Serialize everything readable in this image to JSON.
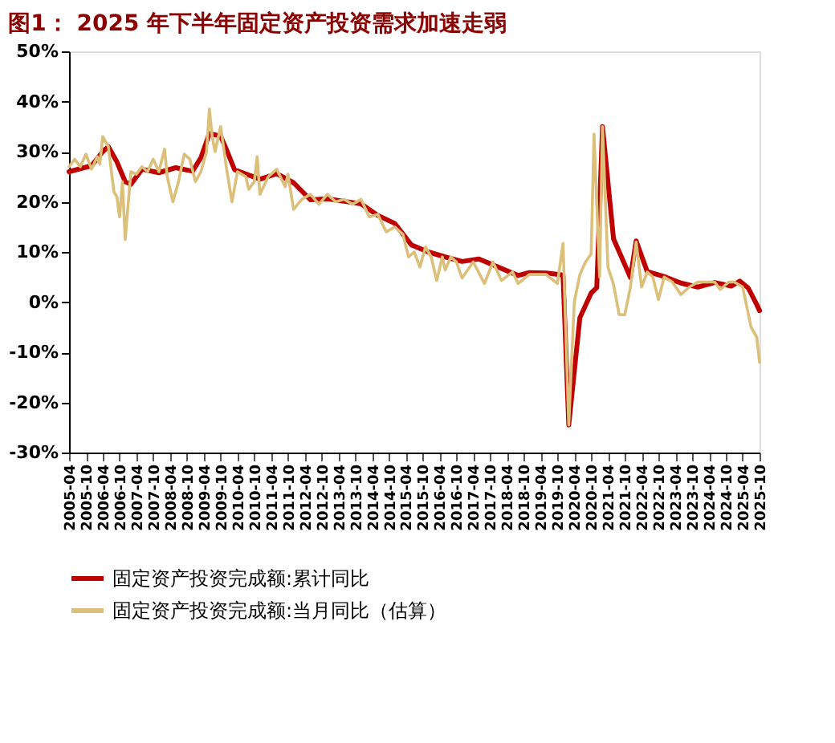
{
  "chart_data": {
    "type": "line",
    "title": "图1：  2025 年下半年固定资产投资需求加速走弱",
    "legend": "bottom",
    "grid": false,
    "xlim": [
      "2005-04",
      "2025-10"
    ],
    "xticks": [
      "2005-04",
      "2005-10",
      "2006-04",
      "2006-10",
      "2007-04",
      "2007-10",
      "2008-04",
      "2008-10",
      "2009-04",
      "2009-10",
      "2010-04",
      "2010-10",
      "2011-04",
      "2011-10",
      "2012-04",
      "2012-10",
      "2013-04",
      "2013-10",
      "2014-04",
      "2014-10",
      "2015-04",
      "2015-10",
      "2016-04",
      "2016-10",
      "2017-04",
      "2017-10",
      "2018-04",
      "2018-10",
      "2019-04",
      "2019-10",
      "2020-04",
      "2020-10",
      "2021-04",
      "2021-10",
      "2022-04",
      "2022-10",
      "2023-04",
      "2023-10",
      "2024-04",
      "2024-10",
      "2025-04",
      "2025-10"
    ],
    "ylim": [
      -30,
      50
    ],
    "yticks": [
      {
        "value": -30,
        "label": "-30%"
      },
      {
        "value": -20,
        "label": "-20%"
      },
      {
        "value": -10,
        "label": "-10%"
      },
      {
        "value": 0,
        "label": "0%"
      },
      {
        "value": 10,
        "label": "10%"
      },
      {
        "value": 20,
        "label": "20%"
      },
      {
        "value": 30,
        "label": "30%"
      },
      {
        "value": 40,
        "label": "40%"
      },
      {
        "value": 50,
        "label": "50%"
      }
    ],
    "series": [
      {
        "name": "固定资产投资完成额:累计同比",
        "color": "#c00000",
        "x": [
          "2005-04",
          "2005-12",
          "2006-04",
          "2006-06",
          "2006-09",
          "2006-12",
          "2007-02",
          "2007-06",
          "2007-12",
          "2008-06",
          "2008-12",
          "2009-03",
          "2009-06",
          "2009-10",
          "2009-12",
          "2010-03",
          "2010-12",
          "2011-06",
          "2011-12",
          "2012-06",
          "2012-12",
          "2013-06",
          "2013-12",
          "2014-06",
          "2014-12",
          "2015-06",
          "2015-12",
          "2016-06",
          "2016-12",
          "2017-06",
          "2017-12",
          "2018-08",
          "2018-12",
          "2019-06",
          "2019-12",
          "2020-02",
          "2020-06",
          "2020-10",
          "2020-12",
          "2021-02",
          "2021-06",
          "2021-12",
          "2022-02",
          "2022-06",
          "2022-12",
          "2023-06",
          "2023-12",
          "2024-06",
          "2024-12",
          "2025-03",
          "2025-06",
          "2025-09",
          "2025-10"
        ],
        "values": [
          26,
          27.2,
          30,
          31,
          28,
          24,
          23.5,
          26.5,
          25.8,
          26.8,
          26.1,
          28.8,
          33.6,
          33.1,
          30.5,
          26.4,
          24.5,
          25.6,
          23.8,
          20.4,
          20.6,
          20.1,
          19.6,
          17.3,
          15.7,
          11.4,
          10,
          9,
          8.1,
          8.6,
          7.2,
          5.3,
          5.9,
          5.8,
          5.4,
          -24.5,
          -3.1,
          1.8,
          2.9,
          35,
          12.6,
          4.9,
          12.2,
          6.1,
          5.1,
          3.8,
          3,
          3.9,
          3.2,
          4.2,
          2.8,
          -0.5,
          -1.7
        ]
      },
      {
        "name": "固定资产投资完成额:当月同比（估算）",
        "color": "#dcc07a",
        "x": [
          "2005-04",
          "2005-06",
          "2005-08",
          "2005-10",
          "2005-12",
          "2006-02",
          "2006-03",
          "2006-04",
          "2006-06",
          "2006-08",
          "2006-09",
          "2006-10",
          "2006-11",
          "2006-12",
          "2007-02",
          "2007-04",
          "2007-06",
          "2007-08",
          "2007-10",
          "2007-12",
          "2008-02",
          "2008-03",
          "2008-05",
          "2008-07",
          "2008-09",
          "2008-11",
          "2009-01",
          "2009-03",
          "2009-05",
          "2009-06",
          "2009-07",
          "2009-08",
          "2009-10",
          "2009-12",
          "2010-02",
          "2010-04",
          "2010-07",
          "2010-08",
          "2010-10",
          "2010-11",
          "2010-12",
          "2011-03",
          "2011-06",
          "2011-09",
          "2011-10",
          "2011-12",
          "2012-03",
          "2012-06",
          "2012-09",
          "2012-12",
          "2013-03",
          "2013-06",
          "2013-09",
          "2013-12",
          "2014-03",
          "2014-06",
          "2014-09",
          "2014-12",
          "2015-03",
          "2015-05",
          "2015-07",
          "2015-09",
          "2015-11",
          "2016-01",
          "2016-03",
          "2016-05",
          "2016-06",
          "2016-08",
          "2016-10",
          "2016-12",
          "2017-04",
          "2017-08",
          "2017-11",
          "2018-02",
          "2018-06",
          "2018-08",
          "2018-12",
          "2019-06",
          "2019-10",
          "2019-12",
          "2020-02",
          "2020-04",
          "2020-06",
          "2020-08",
          "2020-10",
          "2020-11",
          "2021-01",
          "2021-02",
          "2021-04",
          "2021-06",
          "2021-08",
          "2021-10",
          "2021-12",
          "2022-02",
          "2022-04",
          "2022-06",
          "2022-08",
          "2022-10",
          "2022-12",
          "2023-03",
          "2023-06",
          "2023-09",
          "2023-12",
          "2024-03",
          "2024-06",
          "2024-08",
          "2024-11",
          "2025-01",
          "2025-04",
          "2025-07",
          "2025-09",
          "2025-10"
        ],
        "values": [
          27,
          28.5,
          27,
          29.5,
          26.5,
          29,
          27.5,
          33,
          31,
          22,
          21,
          17,
          24,
          12.5,
          26,
          25.5,
          27,
          26,
          28.5,
          26,
          30.5,
          25,
          20,
          24,
          29.5,
          28.5,
          24,
          26,
          30,
          38.5,
          33,
          30,
          35,
          27,
          20,
          26,
          25,
          22.5,
          24,
          29,
          21.5,
          25,
          26.5,
          23,
          25.5,
          18.5,
          20.5,
          21.5,
          19.5,
          21.5,
          20,
          20.5,
          19.5,
          20.5,
          17,
          17.5,
          14,
          15,
          13.5,
          9,
          10,
          7,
          11,
          9,
          4.3,
          9,
          6.4,
          9,
          8,
          4.8,
          8,
          3.7,
          8,
          4.3,
          6,
          3.7,
          5.5,
          5.5,
          3.7,
          11.7,
          -24.5,
          0,
          5.5,
          8,
          9.6,
          33.5,
          5,
          35,
          7,
          3.5,
          -2.5,
          -2.5,
          3,
          12,
          3,
          6,
          5,
          0.5,
          5,
          4,
          1.5,
          3,
          4,
          4,
          4,
          2.5,
          4,
          4,
          3,
          -5,
          -7,
          -12
        ]
      }
    ]
  }
}
